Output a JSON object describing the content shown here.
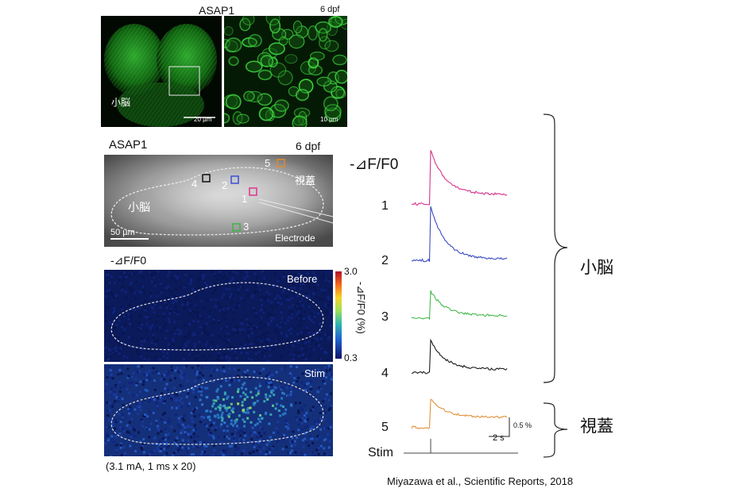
{
  "confocal": {
    "title": "ASAP1",
    "age": "6 dpf",
    "region_label": "小脳",
    "scale_left": "20 µm",
    "scale_right": "10 µm"
  },
  "brightfield": {
    "title": "ASAP1",
    "age": "6 dpf",
    "region_cerebellum": "小脳",
    "region_tectum": "視蓋",
    "scale": "50 µm",
    "electrode": "Electrode",
    "roi_labels": [
      "1",
      "2",
      "3",
      "4",
      "5"
    ],
    "roi_colors": [
      "#e0338a",
      "#3b4fd8",
      "#3cb34a",
      "#111111",
      "#e08a2e"
    ]
  },
  "heatmap": {
    "ylabel": "-⊿F/F0",
    "before_label": "Before",
    "stim_label": "Stim",
    "colorbar_max": "3.0",
    "colorbar_min": "0.3",
    "colorbar_label": "-⊿F/F0 (%)",
    "stim_params": "(3.1 mA, 1 ms x 20)"
  },
  "traces": {
    "ylabel": "-⊿F/F0",
    "labels": [
      "1",
      "2",
      "3",
      "4",
      "5"
    ],
    "colors": [
      "#d6338a",
      "#3a4cc4",
      "#46b94a",
      "#1a1a1a",
      "#e0913a"
    ],
    "peaks": [
      1.0,
      1.0,
      0.5,
      0.6,
      0.55
    ],
    "baselines": [
      0.05,
      0.05,
      0.03,
      0.04,
      0.06
    ],
    "tail": [
      0.2,
      0.05,
      0.06,
      0.08,
      0.22
    ],
    "scale_y": "0.5 %",
    "scale_x": "2 s",
    "stim_label": "Stim"
  },
  "brackets": {
    "cerebellum": "小脳",
    "tectum": "視蓋"
  },
  "citation": "Miyazawa et al., Scientific Reports, 2018"
}
